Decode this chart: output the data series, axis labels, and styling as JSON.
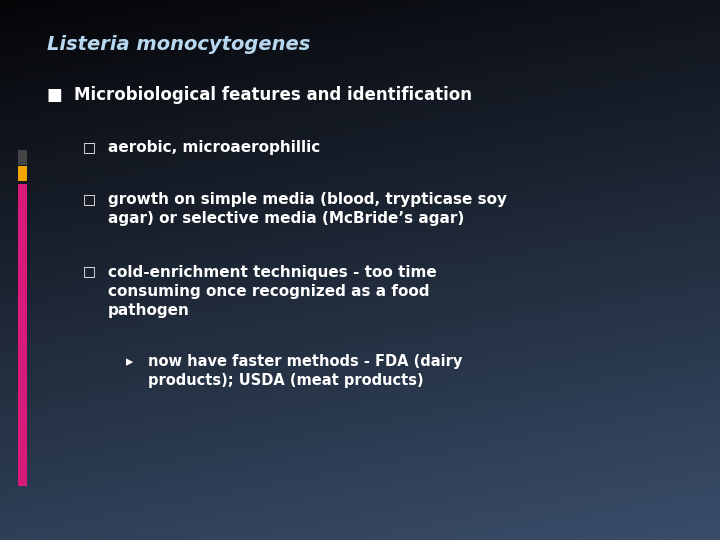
{
  "title": "Listeria monocytogenes",
  "title_color": "#b8d8f0",
  "title_fontsize": 14,
  "bg_color_top": "#050508",
  "bg_color_bottom": "#3a4e6a",
  "bullet1": "Microbiological features and identification",
  "bullet1_color": "#ffffff",
  "bullet1_fontsize": 12,
  "bullet1_marker": "■",
  "sub_bullets": [
    "aerobic, microaerophillic",
    "growth on simple media (blood, trypticase soy\nagar) or selective media (McBride’s agar)",
    "cold-enrichment techniques - too time\nconsuming once recognized as a food\npathogen"
  ],
  "sub_bullet_color": "#ffffff",
  "sub_bullet_fontsize": 11,
  "sub_bullet_marker": "□",
  "sub_sub_bullet": "now have faster methods - FDA (dairy\nproducts); USDA (meat products)",
  "sub_sub_bullet_color": "#ffffff",
  "sub_sub_bullet_fontsize": 10.5,
  "sub_sub_bullet_marker": "▸",
  "bar_pink_color": "#d81b7a",
  "bar_yellow_color": "#f0a500",
  "bar_dark_color": "#444444"
}
